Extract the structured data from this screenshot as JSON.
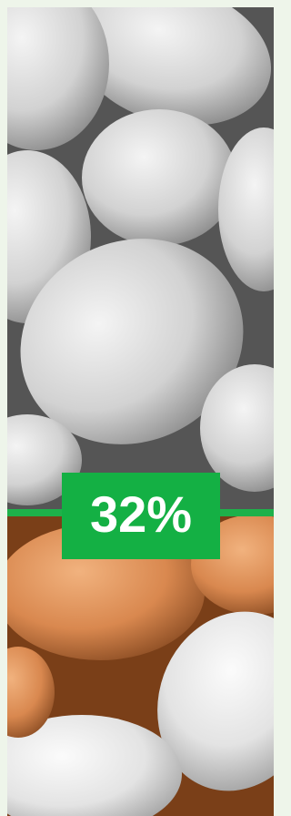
{
  "badge": {
    "text": "32%"
  }
}
